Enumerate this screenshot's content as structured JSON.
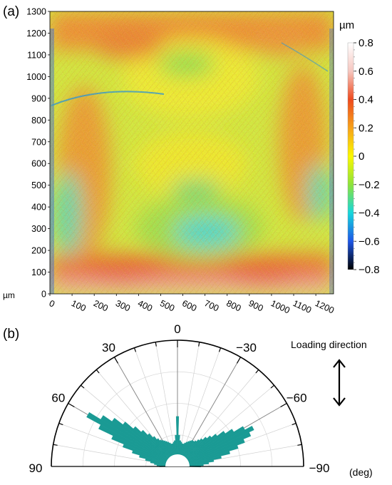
{
  "panel_a": {
    "label": "(a)",
    "chart_data": {
      "type": "heatmap",
      "x_ticks": [
        0,
        100,
        200,
        300,
        400,
        500,
        600,
        700,
        800,
        900,
        1000,
        1100,
        1200
      ],
      "y_ticks": [
        0,
        100,
        200,
        300,
        400,
        500,
        600,
        700,
        800,
        900,
        1000,
        1100,
        1200,
        1300
      ],
      "xlim": [
        0,
        1280
      ],
      "ylim": [
        0,
        1300
      ],
      "axis_unit_label": "µm",
      "colorbar": {
        "unit": "µm",
        "range": [
          -0.8,
          0.8
        ],
        "ticks": [
          "0.8",
          "0.6",
          "0.4",
          "0.2",
          "0",
          "−0.2",
          "−0.4",
          "−0.6",
          "−0.8"
        ],
        "colors": [
          "#ffffff",
          "#f6c7c0",
          "#ee4a1e",
          "#f7a21a",
          "#fbf800",
          "#8de33a",
          "#16d6dc",
          "#1e56e6",
          "#000000"
        ]
      }
    }
  },
  "panel_b": {
    "label": "(b)",
    "chart_data": {
      "type": "polar-histogram",
      "angle_labels": [
        {
          "deg": 0,
          "text": "0"
        },
        {
          "deg": 30,
          "text": "30"
        },
        {
          "deg": -30,
          "text": "−30"
        },
        {
          "deg": 60,
          "text": "60"
        },
        {
          "deg": -60,
          "text": "−60"
        },
        {
          "deg": 90,
          "text": "90"
        },
        {
          "deg": -90,
          "text": "−90"
        }
      ],
      "unit_label": "(deg)",
      "bar_color": "#1a9a94",
      "bins": [
        {
          "deg": -90,
          "value": 0.1
        },
        {
          "deg": -87,
          "value": 0.12
        },
        {
          "deg": -84,
          "value": 0.16
        },
        {
          "deg": -81,
          "value": 0.2
        },
        {
          "deg": -78,
          "value": 0.26
        },
        {
          "deg": -75,
          "value": 0.33
        },
        {
          "deg": -72,
          "value": 0.4
        },
        {
          "deg": -69,
          "value": 0.46
        },
        {
          "deg": -66,
          "value": 0.52
        },
        {
          "deg": -63,
          "value": 0.56
        },
        {
          "deg": -60,
          "value": 0.5
        },
        {
          "deg": -57,
          "value": 0.42
        },
        {
          "deg": -54,
          "value": 0.36
        },
        {
          "deg": -51,
          "value": 0.3
        },
        {
          "deg": -48,
          "value": 0.26
        },
        {
          "deg": -45,
          "value": 0.23
        },
        {
          "deg": -42,
          "value": 0.2
        },
        {
          "deg": -39,
          "value": 0.18
        },
        {
          "deg": -36,
          "value": 0.16
        },
        {
          "deg": -33,
          "value": 0.15
        },
        {
          "deg": -30,
          "value": 0.15
        },
        {
          "deg": -27,
          "value": 0.14
        },
        {
          "deg": -24,
          "value": 0.13
        },
        {
          "deg": -21,
          "value": 0.12
        },
        {
          "deg": -18,
          "value": 0.11
        },
        {
          "deg": -15,
          "value": 0.1
        },
        {
          "deg": -12,
          "value": 0.1
        },
        {
          "deg": -9,
          "value": 0.11
        },
        {
          "deg": -6,
          "value": 0.12
        },
        {
          "deg": -3,
          "value": 0.16
        },
        {
          "deg": 0,
          "value": 0.3
        },
        {
          "deg": 3,
          "value": 0.16
        },
        {
          "deg": 6,
          "value": 0.12
        },
        {
          "deg": 9,
          "value": 0.11
        },
        {
          "deg": 12,
          "value": 0.1
        },
        {
          "deg": 15,
          "value": 0.1
        },
        {
          "deg": 18,
          "value": 0.11
        },
        {
          "deg": 21,
          "value": 0.12
        },
        {
          "deg": 24,
          "value": 0.13
        },
        {
          "deg": 27,
          "value": 0.14
        },
        {
          "deg": 30,
          "value": 0.15
        },
        {
          "deg": 33,
          "value": 0.16
        },
        {
          "deg": 36,
          "value": 0.18
        },
        {
          "deg": 39,
          "value": 0.21
        },
        {
          "deg": 42,
          "value": 0.25
        },
        {
          "deg": 45,
          "value": 0.3
        },
        {
          "deg": 48,
          "value": 0.36
        },
        {
          "deg": 51,
          "value": 0.44
        },
        {
          "deg": 54,
          "value": 0.52
        },
        {
          "deg": 57,
          "value": 0.6
        },
        {
          "deg": 60,
          "value": 0.7
        },
        {
          "deg": 63,
          "value": 0.58
        },
        {
          "deg": 66,
          "value": 0.46
        },
        {
          "deg": 69,
          "value": 0.36
        },
        {
          "deg": 72,
          "value": 0.28
        },
        {
          "deg": 75,
          "value": 0.22
        },
        {
          "deg": 78,
          "value": 0.17
        },
        {
          "deg": 81,
          "value": 0.13
        },
        {
          "deg": 84,
          "value": 0.1
        },
        {
          "deg": 87,
          "value": 0.08
        },
        {
          "deg": 90,
          "value": 0.06
        }
      ]
    },
    "annotation": {
      "text": "Loading direction"
    }
  }
}
